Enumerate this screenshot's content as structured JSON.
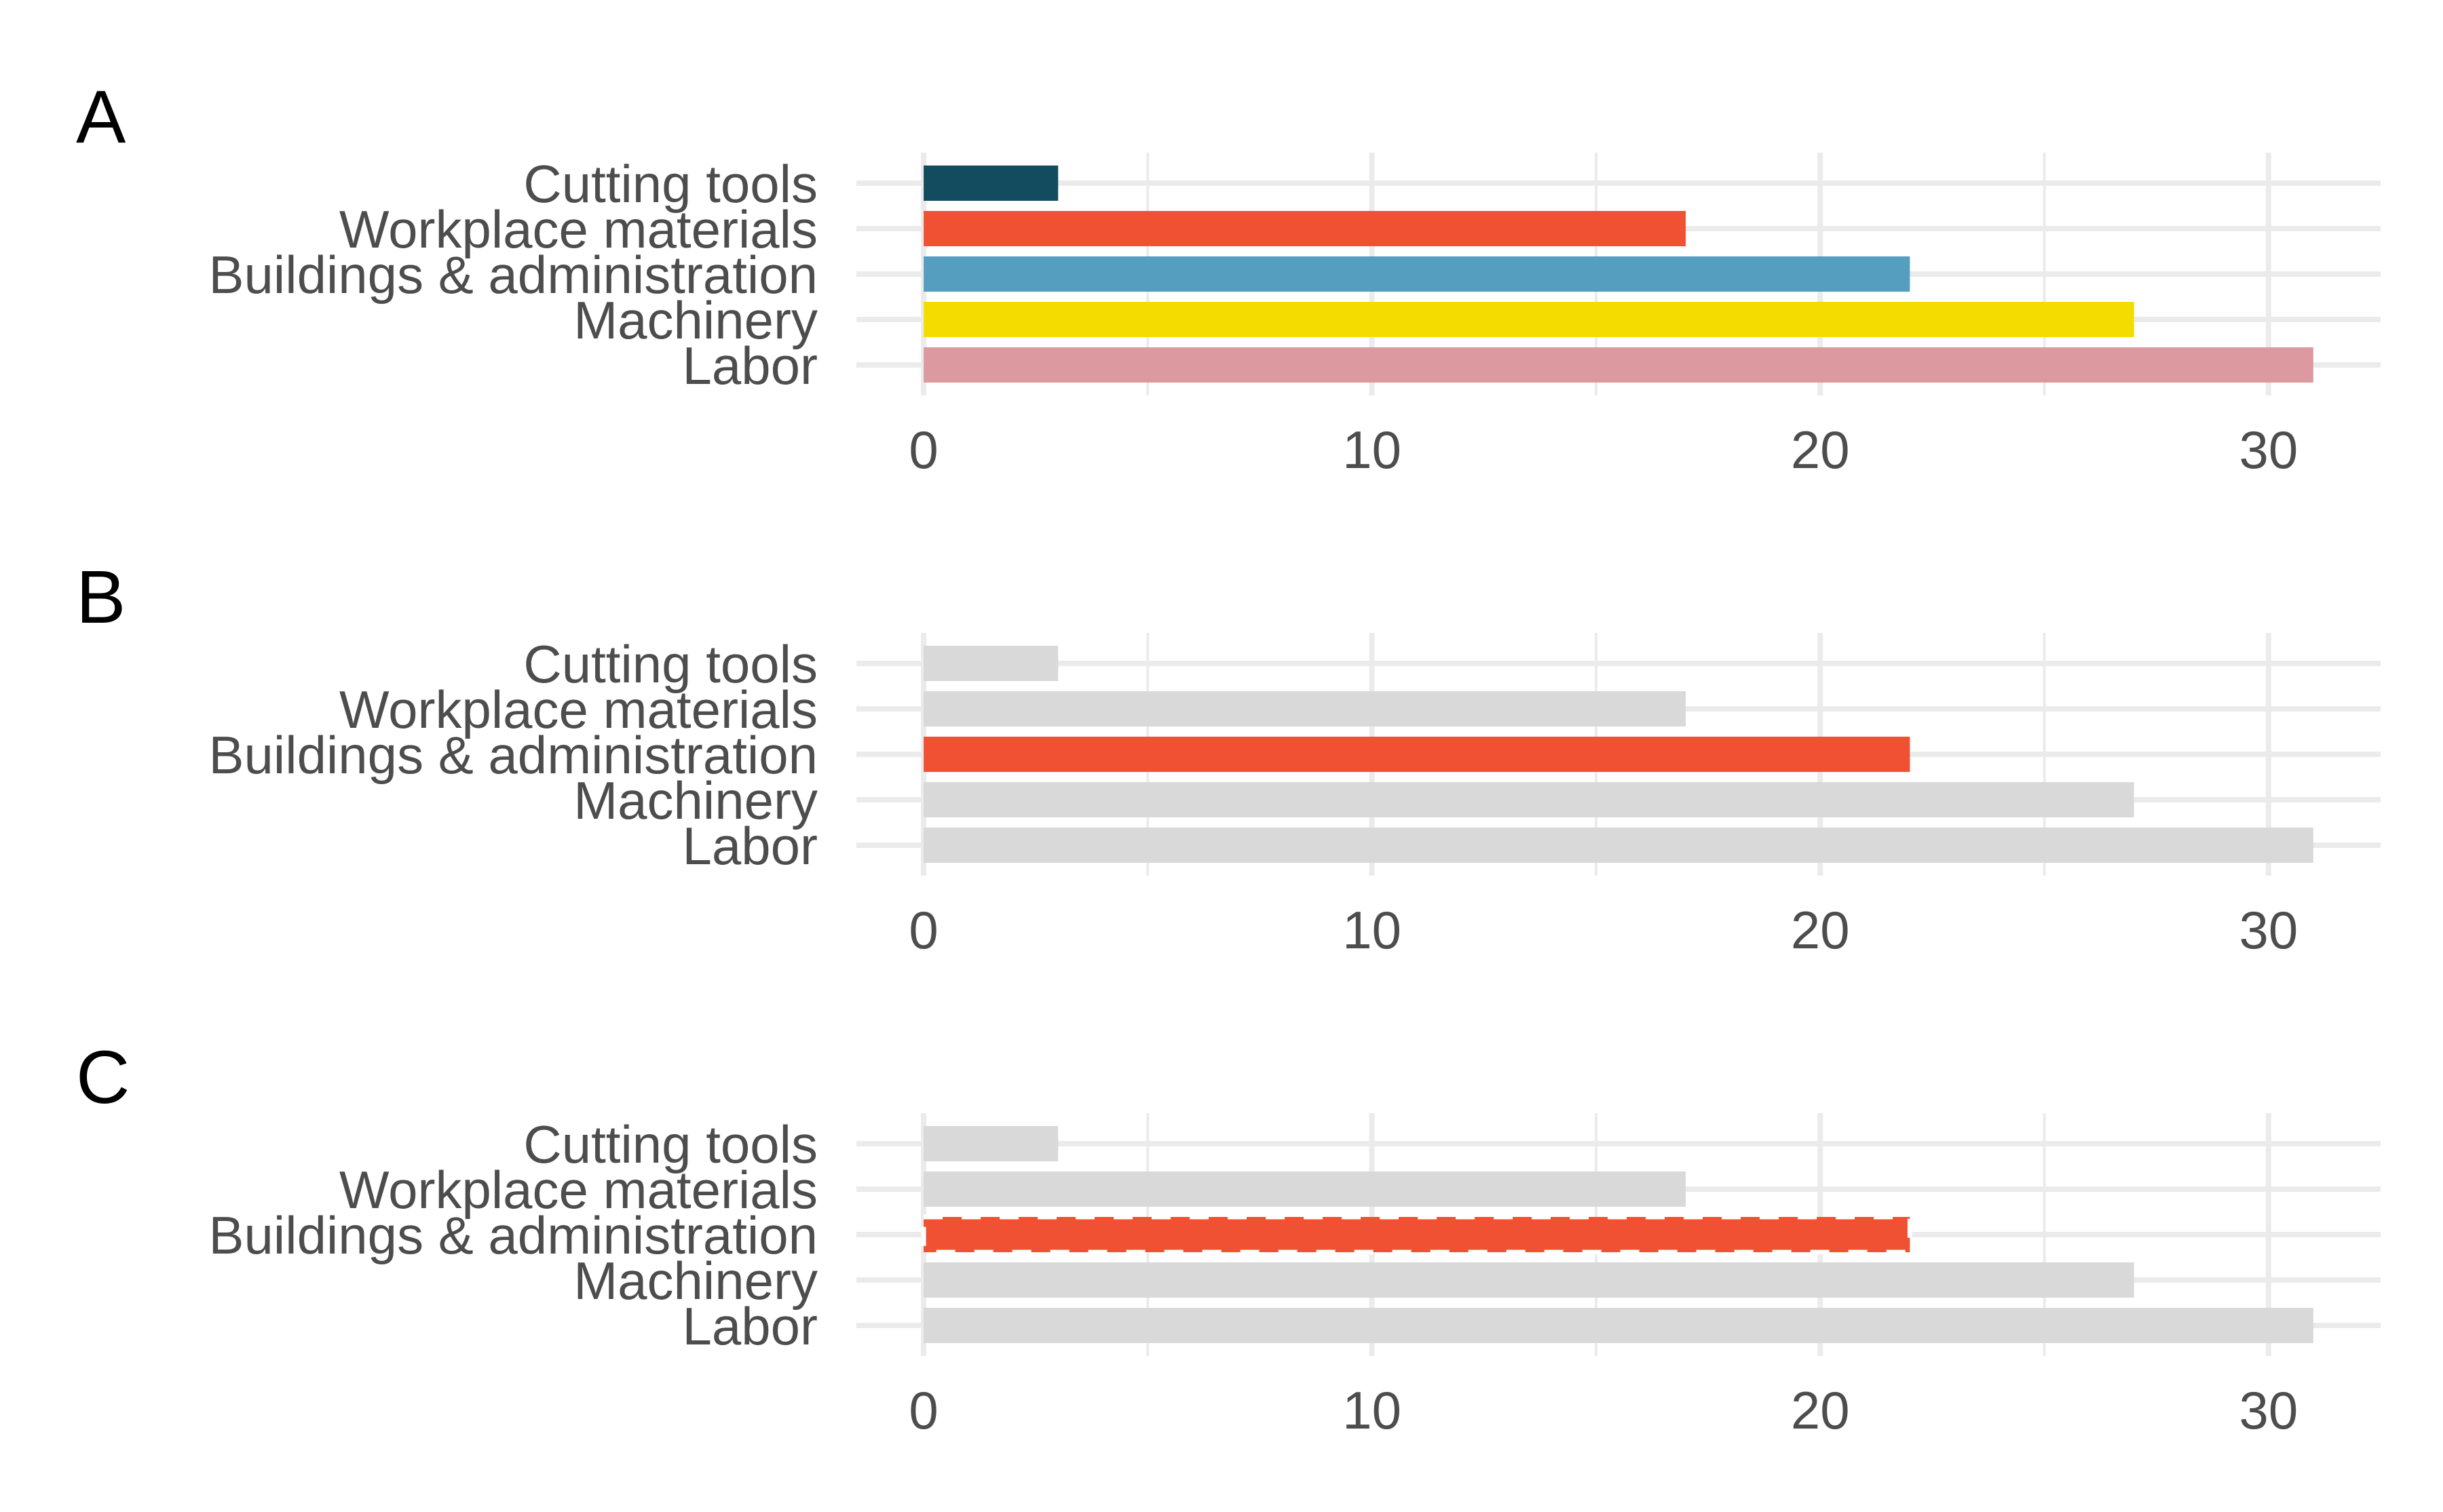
{
  "chart_data": [
    {
      "type": "bar",
      "orientation": "horizontal",
      "panel": "A",
      "categories": [
        "Labor",
        "Machinery",
        "Buildings & administration",
        "Workplace materials",
        "Cutting tools"
      ],
      "values": [
        31,
        27,
        22,
        17,
        3
      ],
      "colors": [
        "#dc9aa0",
        "#f5dc00",
        "#569ec0",
        "#f05133",
        "#134b5f"
      ],
      "xticks": [
        "0",
        "10",
        "20",
        "30"
      ],
      "xlim": [
        -1.5,
        32.5
      ],
      "grid": true
    },
    {
      "type": "bar",
      "orientation": "horizontal",
      "panel": "B",
      "categories": [
        "Labor",
        "Machinery",
        "Buildings & administration",
        "Workplace materials",
        "Cutting tools"
      ],
      "values": [
        31,
        27,
        22,
        17,
        3
      ],
      "colors": [
        "#d9d9d9",
        "#d9d9d9",
        "#f05133",
        "#d9d9d9",
        "#d9d9d9"
      ],
      "highlight": "Buildings & administration",
      "xticks": [
        "0",
        "10",
        "20",
        "30"
      ],
      "xlim": [
        -1.5,
        32.5
      ],
      "grid": true
    },
    {
      "type": "bar",
      "orientation": "horizontal",
      "panel": "C",
      "categories": [
        "Labor",
        "Machinery",
        "Buildings & administration",
        "Workplace materials",
        "Cutting tools"
      ],
      "values": [
        31,
        27,
        22,
        17,
        3
      ],
      "colors": [
        "#d9d9d9",
        "#d9d9d9",
        "#f05133",
        "#d9d9d9",
        "#d9d9d9"
      ],
      "highlight": "Buildings & administration",
      "highlight_outline": "dashed",
      "xticks": [
        "0",
        "10",
        "20",
        "30"
      ],
      "xlim": [
        -1.5,
        32.5
      ],
      "grid": true
    }
  ]
}
